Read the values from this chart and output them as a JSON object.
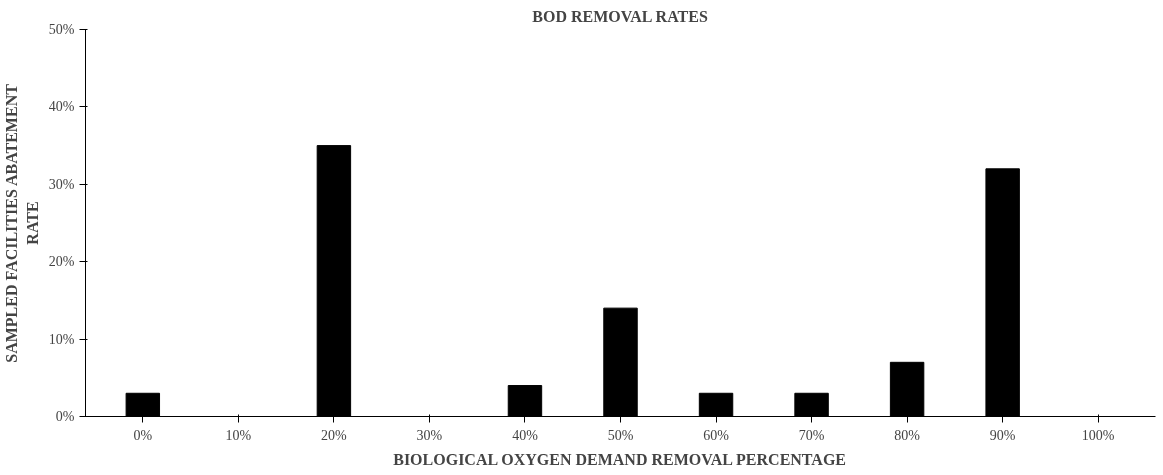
{
  "chart_data": {
    "type": "bar",
    "title": "BOD REMOVAL RATES",
    "xlabel": "BIOLOGICAL OXYGEN DEMAND REMOVAL PERCENTAGE",
    "ylabel": "SAMPLED FACILITIES ABATEMENT\nRATE",
    "categories": [
      "0%",
      "10%",
      "20%",
      "30%",
      "40%",
      "50%",
      "60%",
      "70%",
      "80%",
      "90%",
      "100%"
    ],
    "values": [
      3,
      null,
      35,
      null,
      4,
      14,
      3,
      3,
      7,
      32,
      null
    ],
    "color": "#000000",
    "ylim": [
      0,
      50
    ],
    "yticks": [
      {
        "value": 0,
        "label": "0%"
      },
      {
        "value": 10,
        "label": "10%"
      },
      {
        "value": 20,
        "label": "20%"
      },
      {
        "value": 30,
        "label": "30%"
      },
      {
        "value": 40,
        "label": "40%"
      },
      {
        "value": 50,
        "label": "50%"
      }
    ],
    "grid": false
  }
}
